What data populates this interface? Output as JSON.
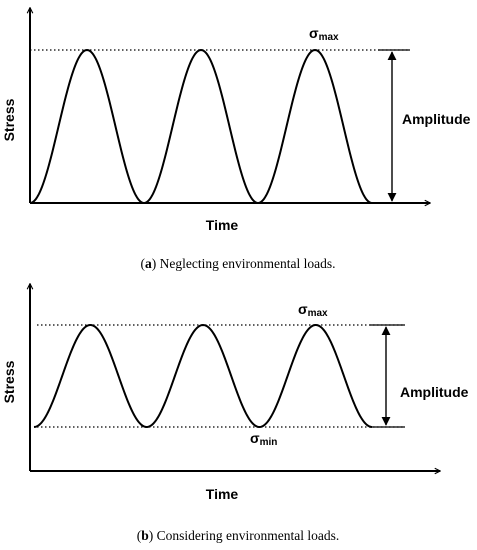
{
  "panel_a": {
    "ylabel": "Stress",
    "xlabel": "Time",
    "max_label": "σ",
    "max_sub": "max",
    "amplitude_label": "Amplitude",
    "caption_letter": "a",
    "caption_text": "Neglecting environmental loads."
  },
  "panel_b": {
    "ylabel": "Stress",
    "xlabel": "Time",
    "max_label": "σ",
    "max_sub": "max",
    "min_label": "σ",
    "min_sub": "min",
    "amplitude_label": "Amplitude",
    "caption_letter": "b",
    "caption_text": "Considering environmental loads."
  }
}
